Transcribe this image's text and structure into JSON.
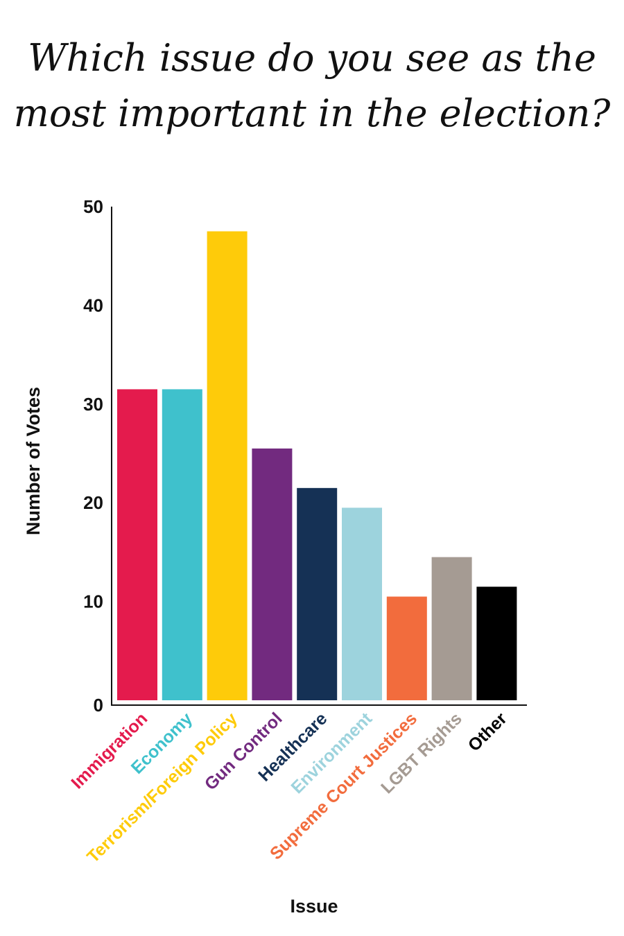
{
  "chart_data": {
    "type": "bar",
    "title_lines": [
      "Which issue do you see as the",
      "most important in the election?"
    ],
    "xlabel": "Issue",
    "ylabel": "Number of Votes",
    "ylim": [
      0,
      50
    ],
    "yticks": [
      0,
      10,
      20,
      30,
      40,
      50
    ],
    "grid": false,
    "categories": [
      "Immigration",
      "Economy",
      "Terrorism/Foreign Policy",
      "Gun Control",
      "Healthcare",
      "Environment",
      "Supreme Court Justices",
      "LGBT Rights",
      "Other"
    ],
    "values": [
      31.5,
      31.5,
      47.5,
      25.5,
      21.5,
      19.5,
      10.5,
      14.5,
      11.5
    ],
    "colors": [
      "#e41b4d",
      "#3fc1cc",
      "#fecb0a",
      "#722a7f",
      "#153155",
      "#9dd3dd",
      "#f26c3d",
      "#a59b93",
      "#000000"
    ]
  }
}
